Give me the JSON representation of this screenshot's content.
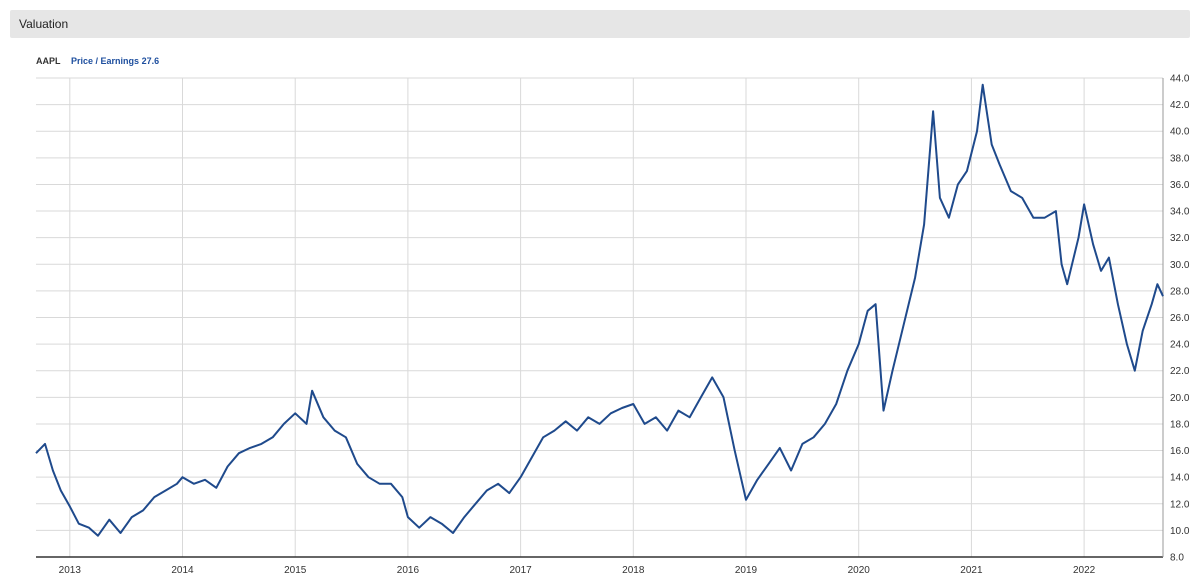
{
  "header": {
    "title": "Valuation"
  },
  "legend": {
    "ticker": "AAPL",
    "metric_label": "Price / Earnings",
    "metric_value": "27.6"
  },
  "chart_data": {
    "type": "line",
    "title": "",
    "xlabel": "",
    "ylabel": "",
    "line_color": "#1f4a8c",
    "grid": true,
    "ylim": [
      8,
      44
    ],
    "xlim": [
      2012.7,
      2022.7
    ],
    "x_ticks": [
      2013,
      2014,
      2015,
      2016,
      2017,
      2018,
      2019,
      2020,
      2021,
      2022
    ],
    "x_tick_labels": [
      "2013",
      "2014",
      "2015",
      "2016",
      "2017",
      "2018",
      "2019",
      "2020",
      "2021",
      "2022"
    ],
    "y_ticks": [
      8,
      10,
      12,
      14,
      16,
      18,
      20,
      22,
      24,
      26,
      28,
      30,
      32,
      34,
      36,
      38,
      40,
      42,
      44
    ],
    "y_tick_labels": [
      "8.0",
      "10.0",
      "12.0",
      "14.0",
      "16.0",
      "18.0",
      "20.0",
      "22.0",
      "24.0",
      "26.0",
      "28.0",
      "30.0",
      "32.0",
      "34.0",
      "36.0",
      "38.0",
      "40.0",
      "42.0",
      "44.0"
    ],
    "series": [
      {
        "name": "Price / Earnings",
        "points": [
          [
            2012.7,
            15.8
          ],
          [
            2012.78,
            16.5
          ],
          [
            2012.85,
            14.5
          ],
          [
            2012.92,
            13.0
          ],
          [
            2013.0,
            11.8
          ],
          [
            2013.08,
            10.5
          ],
          [
            2013.17,
            10.2
          ],
          [
            2013.25,
            9.6
          ],
          [
            2013.35,
            10.8
          ],
          [
            2013.45,
            9.8
          ],
          [
            2013.55,
            11.0
          ],
          [
            2013.65,
            11.5
          ],
          [
            2013.75,
            12.5
          ],
          [
            2013.85,
            13.0
          ],
          [
            2013.95,
            13.5
          ],
          [
            2014.0,
            14.0
          ],
          [
            2014.1,
            13.5
          ],
          [
            2014.2,
            13.8
          ],
          [
            2014.3,
            13.2
          ],
          [
            2014.4,
            14.8
          ],
          [
            2014.5,
            15.8
          ],
          [
            2014.6,
            16.2
          ],
          [
            2014.7,
            16.5
          ],
          [
            2014.8,
            17.0
          ],
          [
            2014.9,
            18.0
          ],
          [
            2015.0,
            18.8
          ],
          [
            2015.1,
            18.0
          ],
          [
            2015.15,
            20.5
          ],
          [
            2015.25,
            18.5
          ],
          [
            2015.35,
            17.5
          ],
          [
            2015.45,
            17.0
          ],
          [
            2015.55,
            15.0
          ],
          [
            2015.65,
            14.0
          ],
          [
            2015.75,
            13.5
          ],
          [
            2015.85,
            13.5
          ],
          [
            2015.95,
            12.5
          ],
          [
            2016.0,
            11.0
          ],
          [
            2016.1,
            10.2
          ],
          [
            2016.2,
            11.0
          ],
          [
            2016.3,
            10.5
          ],
          [
            2016.4,
            9.8
          ],
          [
            2016.5,
            11.0
          ],
          [
            2016.6,
            12.0
          ],
          [
            2016.7,
            13.0
          ],
          [
            2016.8,
            13.5
          ],
          [
            2016.9,
            12.8
          ],
          [
            2017.0,
            14.0
          ],
          [
            2017.1,
            15.5
          ],
          [
            2017.2,
            17.0
          ],
          [
            2017.3,
            17.5
          ],
          [
            2017.4,
            18.2
          ],
          [
            2017.5,
            17.5
          ],
          [
            2017.6,
            18.5
          ],
          [
            2017.7,
            18.0
          ],
          [
            2017.8,
            18.8
          ],
          [
            2017.9,
            19.2
          ],
          [
            2018.0,
            19.5
          ],
          [
            2018.1,
            18.0
          ],
          [
            2018.2,
            18.5
          ],
          [
            2018.3,
            17.5
          ],
          [
            2018.4,
            19.0
          ],
          [
            2018.5,
            18.5
          ],
          [
            2018.6,
            20.0
          ],
          [
            2018.7,
            21.5
          ],
          [
            2018.8,
            20.0
          ],
          [
            2018.9,
            16.0
          ],
          [
            2019.0,
            12.3
          ],
          [
            2019.1,
            13.8
          ],
          [
            2019.2,
            15.0
          ],
          [
            2019.3,
            16.2
          ],
          [
            2019.4,
            14.5
          ],
          [
            2019.5,
            16.5
          ],
          [
            2019.6,
            17.0
          ],
          [
            2019.7,
            18.0
          ],
          [
            2019.8,
            19.5
          ],
          [
            2019.9,
            22.0
          ],
          [
            2020.0,
            24.0
          ],
          [
            2020.08,
            26.5
          ],
          [
            2020.15,
            27.0
          ],
          [
            2020.22,
            19.0
          ],
          [
            2020.3,
            22.0
          ],
          [
            2020.4,
            25.5
          ],
          [
            2020.5,
            29.0
          ],
          [
            2020.58,
            33.0
          ],
          [
            2020.66,
            41.5
          ],
          [
            2020.72,
            35.0
          ],
          [
            2020.8,
            33.5
          ],
          [
            2020.88,
            36.0
          ],
          [
            2020.96,
            37.0
          ],
          [
            2021.05,
            40.0
          ],
          [
            2021.1,
            43.5
          ],
          [
            2021.18,
            39.0
          ],
          [
            2021.25,
            37.5
          ],
          [
            2021.35,
            35.5
          ],
          [
            2021.45,
            35.0
          ],
          [
            2021.55,
            33.5
          ],
          [
            2021.65,
            33.5
          ],
          [
            2021.75,
            34.0
          ],
          [
            2021.8,
            30.0
          ],
          [
            2021.85,
            28.5
          ],
          [
            2021.95,
            32.0
          ],
          [
            2022.0,
            34.5
          ],
          [
            2022.08,
            31.5
          ],
          [
            2022.15,
            29.5
          ],
          [
            2022.22,
            30.5
          ],
          [
            2022.3,
            27.0
          ],
          [
            2022.38,
            24.0
          ],
          [
            2022.45,
            22.0
          ],
          [
            2022.52,
            25.0
          ],
          [
            2022.6,
            27.0
          ],
          [
            2022.65,
            28.5
          ],
          [
            2022.7,
            27.6
          ]
        ]
      }
    ]
  }
}
